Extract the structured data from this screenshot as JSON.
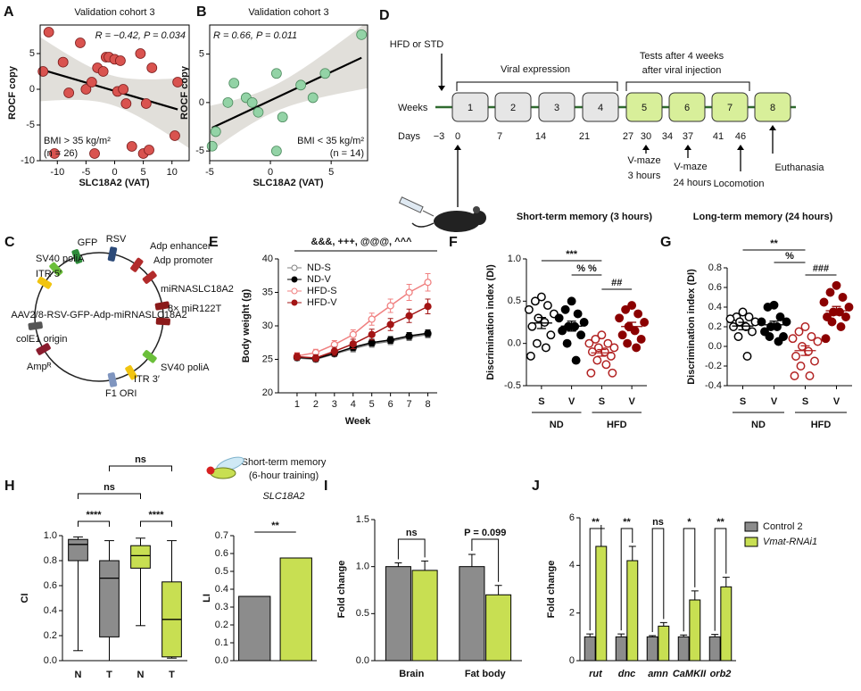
{
  "chart_data": [
    {
      "panel": "A",
      "type": "scatter",
      "title": "Validation cohort 3",
      "subtitle": "R = −0.42, P = 0.034",
      "annotations": [
        "BMI > 35 kg/m²",
        "(n = 26)"
      ],
      "x_label": "SLC18A2 (VAT)",
      "y_label": "ROCF copy",
      "x": [
        -12.5,
        -11.5,
        -10.5,
        -9,
        -8,
        -6,
        -5,
        -4,
        -3.5,
        -3,
        -2,
        -1.5,
        -1,
        0,
        0.5,
        1,
        1.5,
        2,
        3,
        4.5,
        5,
        5.5,
        6,
        6.5,
        10.5,
        11
      ],
      "values": [
        2.5,
        8,
        -9,
        3.8,
        -0.5,
        6.5,
        0,
        1,
        -9,
        3,
        2.5,
        4.5,
        4.5,
        4.2,
        -0.3,
        4,
        0,
        -2,
        -8,
        5,
        -9,
        -2,
        -8.5,
        3,
        -6.5,
        1
      ],
      "color": "#d9534f",
      "edgecolor": "#7a1d1d",
      "xlim": [
        -13,
        13
      ],
      "xticks": [
        -10,
        -5,
        0,
        5,
        10
      ],
      "ylim": [
        -10,
        9
      ],
      "yticks": [
        -10,
        -5,
        0,
        5
      ]
    },
    {
      "panel": "B",
      "type": "scatter",
      "title": "Validation cohort 3",
      "subtitle": "R = 0.66, P = 0.011",
      "annotations": [
        "BMI < 35 kg/m²",
        "(n = 14)"
      ],
      "x_label": "SLC18A2 (VAT)",
      "y_label": "ROCF copy",
      "x": [
        -4.8,
        -4.5,
        -3.5,
        -3,
        -2,
        -1.5,
        -1,
        0.5,
        0.5,
        1,
        2.5,
        3.5,
        4.5,
        7.5
      ],
      "values": [
        -4.5,
        -3,
        0,
        2,
        0.5,
        0,
        -1,
        3,
        -5,
        -1.5,
        1.8,
        0.5,
        3,
        7
      ],
      "color": "#93d3a6",
      "edgecolor": "#4d8a5e",
      "xlim": [
        -5,
        8
      ],
      "xticks": [
        -5,
        0,
        5
      ],
      "ylim": [
        -6,
        8
      ],
      "yticks": [
        -5,
        0,
        5
      ]
    },
    {
      "panel": "E",
      "type": "line",
      "y_label": "Body weight (g)",
      "x_label": "Week",
      "annotations": [
        "&&&, +++, @@@, ^^^"
      ],
      "x": [
        1,
        2,
        3,
        4,
        5,
        6,
        7,
        8
      ],
      "xlim": [
        0,
        8.5
      ],
      "xticks": [
        1,
        2,
        3,
        4,
        5,
        6,
        7,
        8
      ],
      "ylim": [
        20,
        40
      ],
      "yticks": [
        20,
        25,
        30,
        35,
        40
      ],
      "legend": "upper left",
      "series": [
        {
          "name": "ND-S",
          "color": "#808080",
          "open": true,
          "values": [
            25.2,
            25.0,
            25.8,
            26.6,
            27.3,
            27.7,
            28.3,
            28.7
          ],
          "errors": [
            0.4,
            0.4,
            0.4,
            0.5,
            0.5,
            0.5,
            0.5,
            0.5
          ]
        },
        {
          "name": "ND-V",
          "color": "#000000",
          "open": false,
          "values": [
            25.3,
            25.1,
            25.9,
            26.8,
            27.5,
            27.9,
            28.5,
            28.9
          ],
          "errors": [
            0.4,
            0.4,
            0.4,
            0.5,
            0.5,
            0.5,
            0.5,
            0.5
          ]
        },
        {
          "name": "HFD-S",
          "color": "#f08080",
          "open": true,
          "values": [
            25.5,
            26.0,
            27.2,
            28.7,
            31.0,
            33.0,
            35.0,
            36.5
          ],
          "errors": [
            0.5,
            0.5,
            0.6,
            0.7,
            0.9,
            1.0,
            1.2,
            1.3
          ]
        },
        {
          "name": "HFD-V",
          "color": "#a31515",
          "open": false,
          "values": [
            25.4,
            25.2,
            26.2,
            27.3,
            28.7,
            30.2,
            31.5,
            32.9
          ],
          "errors": [
            0.5,
            0.5,
            0.6,
            0.7,
            0.8,
            0.9,
            1.0,
            1.1
          ]
        }
      ]
    },
    {
      "panel": "F",
      "type": "strip",
      "title": "Short-term memory (3 hours)",
      "y_label": "Discrimination index (DI)",
      "categories": [
        "S",
        "V",
        "S",
        "V"
      ],
      "groups": [
        "ND",
        "HFD"
      ],
      "annotations": [
        "***",
        "% %",
        "##"
      ],
      "colors": [
        "#000000",
        "#000000",
        "#b22222",
        "#8b0000"
      ],
      "open": [
        true,
        false,
        true,
        false
      ],
      "ylim": [
        -0.5,
        1.0
      ],
      "yticks": [
        -0.5,
        {
          "value": 0,
          "label": "0.0"
        },
        0.5,
        {
          "value": 1,
          "label": "1.0"
        }
      ],
      "values": [
        [
          0.55,
          0.5,
          0.45,
          0.4,
          0.35,
          0.3,
          0.25,
          0.2,
          0.1,
          0.0,
          -0.05,
          -0.15
        ],
        [
          0.5,
          0.4,
          0.35,
          0.3,
          0.25,
          0.2,
          0.2,
          0.15,
          0.1,
          0.0,
          -0.2
        ],
        [
          0.1,
          0.05,
          0.0,
          0.0,
          -0.05,
          -0.05,
          -0.1,
          -0.1,
          -0.15,
          -0.2,
          -0.25,
          -0.35,
          -0.35
        ],
        [
          0.45,
          0.4,
          0.35,
          0.3,
          0.25,
          0.2,
          0.15,
          0.1,
          0.05,
          0.0,
          -0.05
        ]
      ]
    },
    {
      "panel": "G",
      "type": "strip",
      "title": "Long-term memory (24 hours)",
      "y_label": "Discrimination index (DI)",
      "categories": [
        "S",
        "V",
        "S",
        "V"
      ],
      "groups": [
        "ND",
        "HFD"
      ],
      "annotations": [
        "**",
        "%",
        "###"
      ],
      "colors": [
        "#000000",
        "#000000",
        "#b22222",
        "#8b0000"
      ],
      "open": [
        true,
        false,
        true,
        false
      ],
      "ylim": [
        -0.4,
        0.8
      ],
      "yticks": [
        -0.4,
        -0.2,
        {
          "value": 0,
          "label": "0.0"
        },
        0.2,
        0.4,
        0.6,
        0.8
      ],
      "values": [
        [
          0.35,
          0.3,
          0.3,
          0.28,
          0.25,
          0.25,
          0.2,
          0.2,
          0.15,
          0.1,
          -0.1
        ],
        [
          0.42,
          0.4,
          0.3,
          0.25,
          0.25,
          0.2,
          0.2,
          0.15,
          0.1,
          0.1,
          0.05
        ],
        [
          0.2,
          0.15,
          0.1,
          0.08,
          0.05,
          0.0,
          -0.05,
          -0.1,
          -0.15,
          -0.2,
          -0.3,
          -0.3
        ],
        [
          0.62,
          0.55,
          0.5,
          0.45,
          0.4,
          0.35,
          0.35,
          0.3,
          0.3,
          0.25,
          0.2,
          0.08
        ]
      ]
    },
    {
      "panel": "H",
      "type": "box",
      "y_label": "CI",
      "categories": [
        "N",
        "T",
        "N",
        "T"
      ],
      "annotations": [
        "ns",
        "ns",
        "****",
        "****"
      ],
      "colors": [
        "#8c8c8c",
        "#8c8c8c",
        "#c8df52",
        "#c8df52"
      ],
      "ylim": [
        0,
        1
      ],
      "yticks": [
        {
          "value": 0,
          "label": "0.0"
        },
        0.2,
        0.4,
        0.6,
        0.8,
        {
          "value": 1,
          "label": "1.0"
        }
      ],
      "boxes": [
        {
          "min": 0.08,
          "q1": 0.8,
          "median": 0.93,
          "q3": 0.97,
          "max": 0.99
        },
        {
          "min": 0.0,
          "q1": 0.19,
          "median": 0.66,
          "q3": 0.8,
          "max": 0.96
        },
        {
          "min": 0.28,
          "q1": 0.74,
          "median": 0.84,
          "q3": 0.92,
          "max": 0.98
        },
        {
          "min": 0.02,
          "q1": 0.03,
          "median": 0.33,
          "q3": 0.63,
          "max": 0.96
        }
      ]
    },
    {
      "type": "bar",
      "title": "Short-term memory",
      "subtitle": "(6-hour training)",
      "gene_label": "SLC18A2",
      "y_label": "LI",
      "annotations": [
        "**"
      ],
      "values": [
        0.36,
        0.575
      ],
      "colors": [
        "#8c8c8c",
        "#c8df52"
      ],
      "ylim": [
        0,
        0.7
      ],
      "yticks": [
        {
          "value": 0,
          "label": "0.0"
        },
        0.1,
        0.2,
        0.3,
        0.4,
        0.5,
        0.6,
        0.7
      ]
    },
    {
      "panel": "I",
      "type": "grouped_bar",
      "y_label": "Fold change",
      "categories": [
        "Brain",
        "Fat body"
      ],
      "annotations": [
        "ns",
        "P = 0.099"
      ],
      "ylim": [
        0,
        1.5
      ],
      "yticks": [
        {
          "value": 0,
          "label": "0.0"
        },
        0.5,
        {
          "value": 1,
          "label": "1.0"
        },
        1.5
      ],
      "series": [
        {
          "color": "#8c8c8c",
          "values": [
            1.0,
            1.0
          ],
          "errors": [
            0.04,
            0.13
          ]
        },
        {
          "color": "#c8df52",
          "values": [
            0.96,
            0.7
          ],
          "errors": [
            0.1,
            0.1
          ]
        }
      ]
    },
    {
      "panel": "J",
      "type": "grouped_bar",
      "y_label": "Fold change",
      "categories": [
        "rut",
        "dnc",
        "amn",
        "CaMKII",
        "orb2"
      ],
      "annotations": [
        "**",
        "**",
        "ns",
        "*",
        "**"
      ],
      "legend": "right",
      "ylim": [
        0,
        6
      ],
      "yticks": [
        0,
        2,
        4,
        6
      ],
      "series": [
        {
          "name": "Control 2",
          "color": "#8c8c8c",
          "values": [
            1.0,
            1.0,
            1.0,
            1.0,
            1.0
          ],
          "errors": [
            0.12,
            0.12,
            0.05,
            0.08,
            0.1
          ]
        },
        {
          "name": "Vmat-RNAi1",
          "color": "#c8df52",
          "values": [
            4.8,
            4.2,
            1.45,
            2.55,
            3.1
          ],
          "errors": [
            0.75,
            0.6,
            0.15,
            0.38,
            0.4
          ]
        }
      ]
    }
  ],
  "plasmid": {
    "panel": "C",
    "center_label": "AAV2/8-RSV-GFP-Adp-miRNASLC18A2",
    "labels": [
      "RSV",
      "GFP",
      "Adp enhancer",
      "Adp promoter",
      "SV40 poliA",
      "ITR 5′",
      "miRNASLC18A2",
      "8× miR122T",
      "colE1 origin",
      "Ampᴿ",
      "SV40 poliA",
      "ITR 3′",
      "F1 ORI"
    ]
  },
  "timeline": {
    "panel": "D",
    "start": "HFD or STD",
    "phase_1": "Viral expression",
    "phase_2": [
      "Tests after 4 weeks",
      "after viral injection"
    ],
    "row_label": "Weeks",
    "weeks": [
      "1",
      "2",
      "3",
      "4",
      "5",
      "6",
      "7",
      "8"
    ],
    "day_label": "Days",
    "days": [
      "−3",
      "0",
      "7",
      "14",
      "21",
      "27",
      "30",
      "34",
      "37",
      "41",
      "46"
    ],
    "events": [
      "V-maze",
      "3 hours",
      "V-maze",
      "24 hours",
      "Locomotion",
      "Euthanasia"
    ]
  }
}
